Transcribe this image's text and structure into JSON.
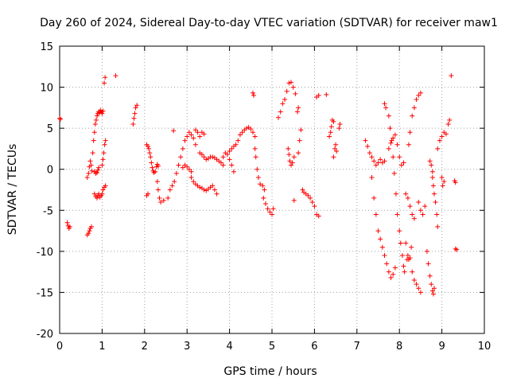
{
  "chart_data": {
    "type": "scatter",
    "title": "Day 260 of 2024, Sidereal Day-to-day VTEC variation (SDTVAR) for receiver maw1",
    "xlabel": "GPS time / hours",
    "ylabel": "SDTVAR / TECUs",
    "xlim": [
      0,
      10
    ],
    "ylim": [
      -20,
      15
    ],
    "xticks": [
      0,
      1,
      2,
      3,
      4,
      5,
      6,
      7,
      8,
      9,
      10
    ],
    "yticks": [
      -20,
      -15,
      -10,
      -5,
      0,
      5,
      10,
      15
    ],
    "grid": true,
    "marker": "+",
    "color": "#ff0000",
    "series": [
      {
        "name": "maw1",
        "points": [
          [
            0.0,
            6.2
          ],
          [
            0.02,
            6.1
          ],
          [
            0.18,
            -6.5
          ],
          [
            0.2,
            -6.9
          ],
          [
            0.22,
            -7.2
          ],
          [
            0.24,
            -7.0
          ],
          [
            0.65,
            -8.0
          ],
          [
            0.68,
            -7.8
          ],
          [
            0.7,
            -7.5
          ],
          [
            0.72,
            -7.2
          ],
          [
            0.75,
            -7.0
          ],
          [
            0.65,
            -1.0
          ],
          [
            0.68,
            -0.5
          ],
          [
            0.7,
            0.3
          ],
          [
            0.72,
            1.0
          ],
          [
            0.74,
            0.5
          ],
          [
            0.76,
            -0.2
          ],
          [
            0.78,
            2.0
          ],
          [
            0.8,
            3.5
          ],
          [
            0.82,
            4.5
          ],
          [
            0.84,
            5.5
          ],
          [
            0.86,
            6.0
          ],
          [
            0.88,
            6.5
          ],
          [
            0.9,
            6.8
          ],
          [
            0.92,
            7.0
          ],
          [
            0.94,
            6.9
          ],
          [
            0.96,
            7.2
          ],
          [
            0.98,
            7.0
          ],
          [
            1.0,
            6.8
          ],
          [
            1.02,
            7.1
          ],
          [
            0.82,
            -0.3
          ],
          [
            0.85,
            -0.5
          ],
          [
            0.88,
            -0.4
          ],
          [
            0.9,
            -0.1
          ],
          [
            0.92,
            0.2
          ],
          [
            0.82,
            -3.0
          ],
          [
            0.85,
            -3.3
          ],
          [
            0.88,
            -3.5
          ],
          [
            0.9,
            -3.2
          ],
          [
            0.92,
            -3.0
          ],
          [
            0.95,
            -3.4
          ],
          [
            0.98,
            -3.2
          ],
          [
            1.0,
            -3.0
          ],
          [
            1.0,
            0.5
          ],
          [
            1.02,
            1.2
          ],
          [
            1.04,
            2.0
          ],
          [
            1.06,
            3.0
          ],
          [
            1.08,
            3.5
          ],
          [
            1.02,
            -2.5
          ],
          [
            1.05,
            -2.2
          ],
          [
            1.08,
            -2.0
          ],
          [
            1.05,
            10.5
          ],
          [
            1.07,
            11.2
          ],
          [
            1.32,
            11.4
          ],
          [
            1.73,
            5.5
          ],
          [
            1.75,
            6.2
          ],
          [
            1.77,
            6.8
          ],
          [
            1.79,
            7.5
          ],
          [
            1.82,
            7.8
          ],
          [
            2.05,
            -3.2
          ],
          [
            2.08,
            -3.0
          ],
          [
            2.05,
            3.0
          ],
          [
            2.08,
            2.8
          ],
          [
            2.1,
            2.5
          ],
          [
            2.12,
            2.0
          ],
          [
            2.14,
            1.5
          ],
          [
            2.16,
            0.8
          ],
          [
            2.18,
            0.2
          ],
          [
            2.2,
            -0.2
          ],
          [
            2.22,
            -0.4
          ],
          [
            2.25,
            -0.3
          ],
          [
            2.28,
            0.3
          ],
          [
            2.3,
            0.6
          ],
          [
            2.32,
            0.4
          ],
          [
            2.3,
            -1.5
          ],
          [
            2.32,
            -2.5
          ],
          [
            2.35,
            -3.5
          ],
          [
            2.38,
            -4.0
          ],
          [
            2.45,
            -3.8
          ],
          [
            2.55,
            -3.5
          ],
          [
            2.6,
            -2.5
          ],
          [
            2.65,
            -2.0
          ],
          [
            2.68,
            4.7
          ],
          [
            2.7,
            -1.5
          ],
          [
            2.75,
            -0.5
          ],
          [
            2.8,
            0.5
          ],
          [
            2.85,
            1.5
          ],
          [
            2.9,
            2.5
          ],
          [
            2.95,
            3.5
          ],
          [
            3.0,
            4.0
          ],
          [
            3.05,
            4.5
          ],
          [
            3.1,
            4.2
          ],
          [
            3.15,
            3.8
          ],
          [
            3.2,
            3.0
          ],
          [
            2.9,
            0.2
          ],
          [
            2.95,
            0.5
          ],
          [
            3.0,
            0.3
          ],
          [
            3.05,
            0.0
          ],
          [
            3.1,
            -0.3
          ],
          [
            3.1,
            -1.0
          ],
          [
            3.15,
            -1.5
          ],
          [
            3.2,
            -1.8
          ],
          [
            3.25,
            -2.0
          ],
          [
            3.3,
            -2.2
          ],
          [
            3.35,
            -2.3
          ],
          [
            3.4,
            -2.5
          ],
          [
            3.45,
            -2.6
          ],
          [
            3.5,
            -2.4
          ],
          [
            3.55,
            -2.2
          ],
          [
            3.6,
            -2.0
          ],
          [
            3.65,
            -2.5
          ],
          [
            3.7,
            -3.0
          ],
          [
            3.2,
            4.8
          ],
          [
            3.25,
            4.5
          ],
          [
            3.3,
            4.0
          ],
          [
            3.35,
            4.5
          ],
          [
            3.4,
            4.3
          ],
          [
            3.3,
            2.0
          ],
          [
            3.35,
            1.8
          ],
          [
            3.4,
            1.5
          ],
          [
            3.45,
            1.2
          ],
          [
            3.5,
            1.3
          ],
          [
            3.55,
            1.5
          ],
          [
            3.6,
            1.5
          ],
          [
            3.65,
            1.4
          ],
          [
            3.7,
            1.2
          ],
          [
            3.75,
            1.0
          ],
          [
            3.8,
            0.8
          ],
          [
            3.85,
            0.5
          ],
          [
            3.85,
            1.5
          ],
          [
            3.9,
            2.0
          ],
          [
            3.95,
            1.8
          ],
          [
            4.0,
            2.2
          ],
          [
            4.05,
            2.5
          ],
          [
            4.1,
            2.8
          ],
          [
            4.15,
            3.0
          ],
          [
            4.0,
            1.2
          ],
          [
            4.05,
            0.5
          ],
          [
            4.1,
            -0.3
          ],
          [
            4.2,
            3.5
          ],
          [
            4.25,
            4.2
          ],
          [
            4.3,
            4.5
          ],
          [
            4.35,
            4.8
          ],
          [
            4.4,
            5.0
          ],
          [
            4.45,
            5.1
          ],
          [
            4.5,
            4.9
          ],
          [
            4.55,
            4.5
          ],
          [
            4.6,
            4.0
          ],
          [
            4.55,
            9.3
          ],
          [
            4.57,
            9.0
          ],
          [
            4.6,
            2.5
          ],
          [
            4.62,
            1.5
          ],
          [
            4.65,
            0.0
          ],
          [
            4.68,
            -1.0
          ],
          [
            4.72,
            -1.8
          ],
          [
            4.78,
            -2.0
          ],
          [
            4.82,
            -2.5
          ],
          [
            4.8,
            -3.5
          ],
          [
            4.85,
            -4.2
          ],
          [
            4.9,
            -4.8
          ],
          [
            4.95,
            -5.2
          ],
          [
            5.0,
            -5.5
          ],
          [
            5.03,
            -4.8
          ],
          [
            5.15,
            6.3
          ],
          [
            5.2,
            7.0
          ],
          [
            5.25,
            8.0
          ],
          [
            5.3,
            8.5
          ],
          [
            5.35,
            9.5
          ],
          [
            5.4,
            10.5
          ],
          [
            5.45,
            10.6
          ],
          [
            5.5,
            10.0
          ],
          [
            5.55,
            9.2
          ],
          [
            5.38,
            2.5
          ],
          [
            5.4,
            1.8
          ],
          [
            5.42,
            1.0
          ],
          [
            5.45,
            0.5
          ],
          [
            5.48,
            0.8
          ],
          [
            5.52,
            1.5
          ],
          [
            5.52,
            -3.8
          ],
          [
            5.62,
            2.0
          ],
          [
            5.65,
            3.5
          ],
          [
            5.68,
            4.8
          ],
          [
            5.6,
            7.0
          ],
          [
            5.62,
            7.5
          ],
          [
            5.72,
            -2.5
          ],
          [
            5.75,
            -2.8
          ],
          [
            5.8,
            -3.0
          ],
          [
            5.85,
            -3.2
          ],
          [
            5.9,
            -3.5
          ],
          [
            5.95,
            -4.0
          ],
          [
            6.0,
            -4.5
          ],
          [
            6.05,
            -5.5
          ],
          [
            6.1,
            -5.7
          ],
          [
            6.05,
            8.8
          ],
          [
            6.1,
            9.0
          ],
          [
            6.28,
            9.1
          ],
          [
            6.35,
            4.0
          ],
          [
            6.38,
            4.5
          ],
          [
            6.4,
            5.2
          ],
          [
            6.42,
            6.0
          ],
          [
            6.45,
            5.8
          ],
          [
            6.45,
            1.5
          ],
          [
            6.48,
            2.5
          ],
          [
            6.5,
            3.0
          ],
          [
            6.52,
            2.2
          ],
          [
            6.58,
            5.0
          ],
          [
            6.6,
            5.5
          ],
          [
            7.2,
            3.5
          ],
          [
            7.25,
            2.8
          ],
          [
            7.3,
            2.0
          ],
          [
            7.35,
            1.5
          ],
          [
            7.4,
            1.0
          ],
          [
            7.45,
            0.5
          ],
          [
            7.5,
            0.8
          ],
          [
            7.55,
            1.2
          ],
          [
            7.6,
            0.8
          ],
          [
            7.65,
            1.0
          ],
          [
            7.65,
            8.0
          ],
          [
            7.68,
            7.5
          ],
          [
            7.75,
            2.5
          ],
          [
            7.8,
            3.2
          ],
          [
            7.85,
            3.8
          ],
          [
            7.9,
            4.2
          ],
          [
            7.95,
            3.0
          ],
          [
            8.0,
            1.5
          ],
          [
            8.05,
            0.5
          ],
          [
            8.1,
            0.8
          ],
          [
            7.35,
            -1.0
          ],
          [
            7.4,
            -3.5
          ],
          [
            7.45,
            -5.5
          ],
          [
            7.5,
            -7.5
          ],
          [
            7.55,
            -8.5
          ],
          [
            7.6,
            -9.5
          ],
          [
            7.65,
            -10.5
          ],
          [
            7.7,
            -11.5
          ],
          [
            7.75,
            -12.5
          ],
          [
            7.8,
            -13.2
          ],
          [
            7.85,
            -12.8
          ],
          [
            7.9,
            -12.0
          ],
          [
            7.75,
            6.5
          ],
          [
            7.78,
            5.0
          ],
          [
            7.82,
            3.5
          ],
          [
            7.85,
            1.5
          ],
          [
            7.88,
            -0.5
          ],
          [
            7.92,
            -3.0
          ],
          [
            7.95,
            -5.5
          ],
          [
            8.0,
            -7.5
          ],
          [
            8.03,
            -9.0
          ],
          [
            8.07,
            -10.5
          ],
          [
            8.1,
            -11.8
          ],
          [
            8.12,
            -12.5
          ],
          [
            8.15,
            -9.0
          ],
          [
            8.18,
            -11.0
          ],
          [
            8.2,
            -10.5
          ],
          [
            8.22,
            -11.0
          ],
          [
            8.25,
            -10.8
          ],
          [
            8.28,
            -9.5
          ],
          [
            8.15,
            -3.0
          ],
          [
            8.2,
            -3.5
          ],
          [
            8.25,
            -4.5
          ],
          [
            8.3,
            -5.5
          ],
          [
            8.35,
            -6.0
          ],
          [
            8.22,
            3.0
          ],
          [
            8.25,
            4.5
          ],
          [
            8.3,
            6.5
          ],
          [
            8.35,
            7.5
          ],
          [
            8.4,
            8.5
          ],
          [
            8.45,
            9.0
          ],
          [
            8.5,
            9.3
          ],
          [
            8.3,
            -12.5
          ],
          [
            8.35,
            -13.5
          ],
          [
            8.4,
            -14.0
          ],
          [
            8.45,
            -14.5
          ],
          [
            8.5,
            -15.0
          ],
          [
            8.45,
            -4.0
          ],
          [
            8.5,
            -5.0
          ],
          [
            8.55,
            -5.5
          ],
          [
            8.6,
            -4.5
          ],
          [
            8.65,
            -10.0
          ],
          [
            8.68,
            -11.5
          ],
          [
            8.72,
            -13.0
          ],
          [
            8.75,
            -14.0
          ],
          [
            8.78,
            -14.8
          ],
          [
            8.8,
            -15.2
          ],
          [
            8.82,
            -14.5
          ],
          [
            8.78,
            -1.0
          ],
          [
            8.8,
            -2.0
          ],
          [
            8.82,
            -3.0
          ],
          [
            8.85,
            -4.0
          ],
          [
            8.88,
            -5.5
          ],
          [
            8.9,
            -7.0
          ],
          [
            8.72,
            1.0
          ],
          [
            8.75,
            0.5
          ],
          [
            8.78,
            -0.3
          ],
          [
            8.9,
            2.5
          ],
          [
            8.95,
            3.5
          ],
          [
            9.0,
            4.0
          ],
          [
            9.05,
            4.5
          ],
          [
            9.1,
            4.3
          ],
          [
            9.15,
            5.5
          ],
          [
            9.18,
            6.0
          ],
          [
            9.0,
            -1.0
          ],
          [
            9.02,
            -2.0
          ],
          [
            9.05,
            -1.5
          ],
          [
            9.22,
            11.4
          ],
          [
            9.3,
            -1.4
          ],
          [
            9.32,
            -1.6
          ],
          [
            9.32,
            -9.7
          ],
          [
            9.35,
            -9.8
          ]
        ]
      }
    ]
  }
}
